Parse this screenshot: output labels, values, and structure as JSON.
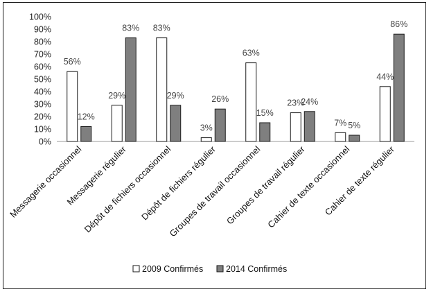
{
  "chart_data": {
    "type": "bar",
    "categories": [
      "Messagerie occasionnel",
      "Messagerie régulier",
      "Dépôt de fichiers occasionnel",
      "Dépôt de fichiers régulier",
      "Groupes de travail occasionnel",
      "Groupes de travail régulier",
      "Cahier de texte occasionnel",
      "Cahier de texte régulier"
    ],
    "series": [
      {
        "name": "2009 Confirmés",
        "values": [
          56,
          29,
          83,
          3,
          63,
          23,
          7,
          44
        ],
        "labels": [
          "56%",
          "29%",
          "83%",
          "3%",
          "63%",
          "23%",
          "7%",
          "44%"
        ],
        "color": "#ffffff"
      },
      {
        "name": "2014 Confirmés",
        "values": [
          12,
          83,
          29,
          26,
          15,
          24,
          5,
          86
        ],
        "labels": [
          "12%",
          "83%",
          "29%",
          "26%",
          "15%",
          "24%",
          "5%",
          "86%"
        ],
        "color": "#7f7f7f"
      }
    ],
    "yticks": [
      "0%",
      "10%",
      "20%",
      "30%",
      "40%",
      "50%",
      "60%",
      "70%",
      "80%",
      "90%",
      "100%"
    ],
    "ylim": [
      0,
      100
    ],
    "title": "",
    "xlabel": "",
    "ylabel": "",
    "grid": false,
    "legend_position": "bottom"
  }
}
